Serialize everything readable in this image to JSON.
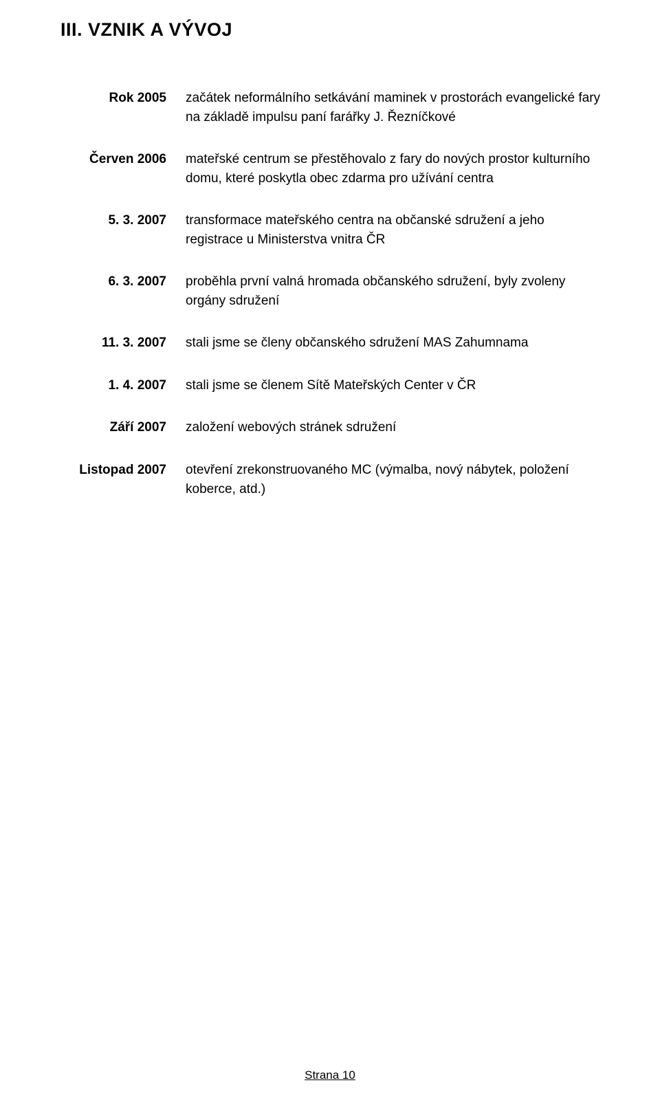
{
  "title": "III. VZNIK A VÝVOJ",
  "rows": [
    {
      "date": "Rok 2005",
      "text": "začátek neformálního setkávání maminek v prostorách evangelické fary na základě impulsu paní farářky J. Řezníčkové"
    },
    {
      "date": "Červen 2006",
      "text": "mateřské centrum se přestěhovalo z fary do nových prostor kulturního domu, které poskytla obec zdarma pro užívání centra"
    },
    {
      "date": "5. 3. 2007",
      "text": "transformace mateřského centra na občanské sdružení a jeho registrace u Ministerstva vnitra ČR"
    },
    {
      "date": "6. 3. 2007",
      "text": "proběhla první valná hromada občanského sdružení, byly zvoleny orgány sdružení"
    },
    {
      "date": "11. 3. 2007",
      "text": "stali jsme se členy občanského sdružení MAS Zahumnama"
    },
    {
      "date": "1. 4. 2007",
      "text": "stali jsme se členem Sítě Mateřských Center v ČR"
    },
    {
      "date": "Září 2007",
      "text": "založení webových stránek sdružení"
    },
    {
      "date": "Listopad 2007",
      "text": "otevření zrekonstruovaného MC (výmalba, nový nábytek, položení koberce, atd.)"
    }
  ],
  "footer": "Strana 10"
}
